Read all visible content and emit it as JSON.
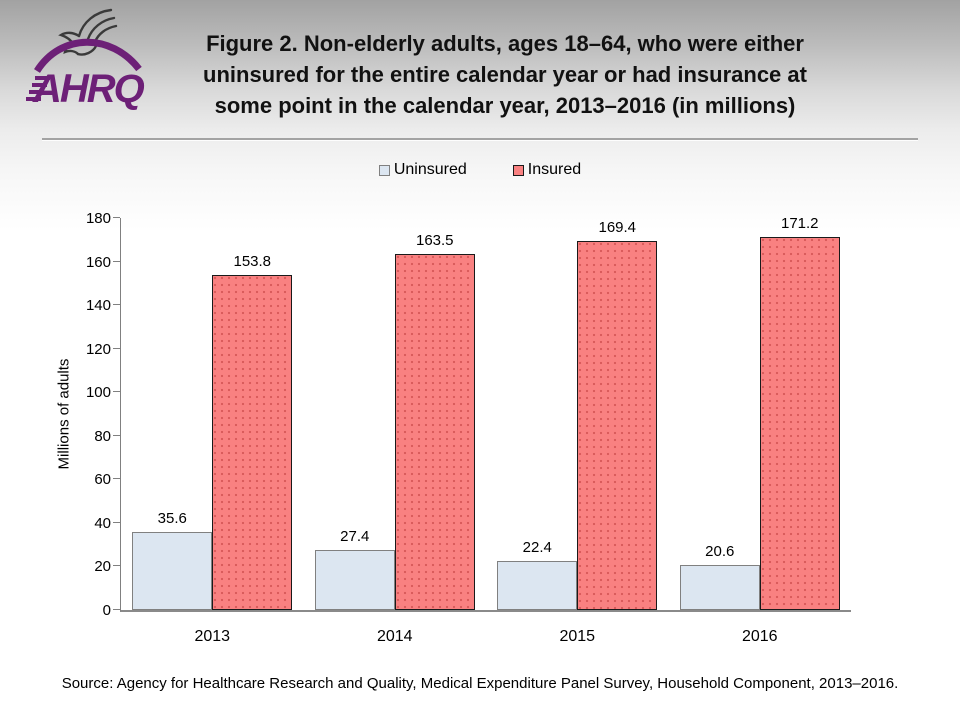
{
  "header": {
    "logo_text": "AHRQ",
    "title_lines": [
      "Figure 2. Non-elderly adults, ages 18–64, who were either",
      "uninsured for the entire calendar year or had insurance at",
      "some point in the calendar year, 2013–2016 (in millions)"
    ]
  },
  "chart_data": {
    "type": "bar",
    "categories": [
      "2013",
      "2014",
      "2015",
      "2016"
    ],
    "series": [
      {
        "name": "Uninsured",
        "values": [
          35.6,
          27.4,
          22.4,
          20.6
        ],
        "fill": "#dce6f1",
        "border": "#808080"
      },
      {
        "name": "Insured",
        "values": [
          153.8,
          163.5,
          169.4,
          171.2
        ],
        "fill": "#f98181",
        "border": "#1a1a1a"
      }
    ],
    "title": "",
    "xlabel": "",
    "ylabel": "Millions of adults",
    "ylim": [
      0,
      180
    ],
    "ytick_step": 20,
    "grid": false,
    "legend_position": "top-center",
    "value_labels": true
  },
  "colors": {
    "brand_purple": "#6d2077",
    "eagle_gray": "#3a3a3a",
    "axis_gray": "#808080",
    "title_text": "#111111"
  },
  "footer": {
    "source": "Source: Agency for Healthcare Research and Quality, Medical Expenditure Panel Survey, Household Component, 2013–2016."
  }
}
